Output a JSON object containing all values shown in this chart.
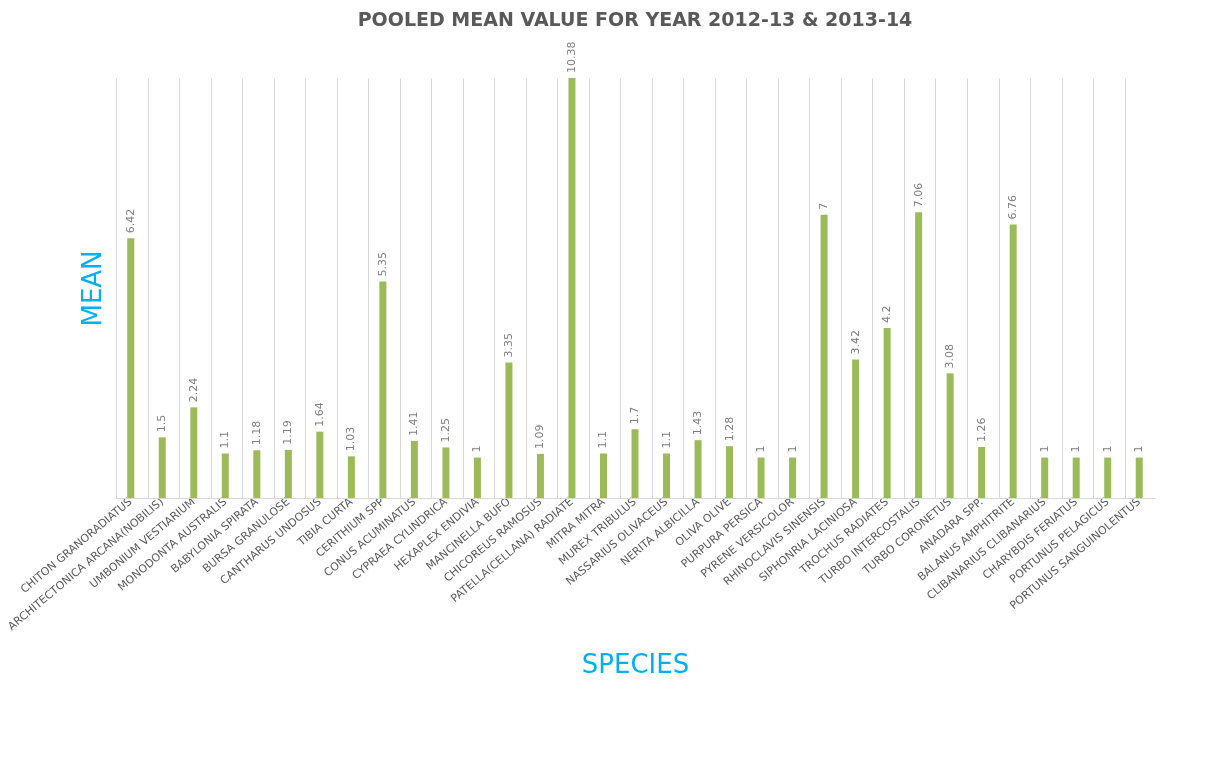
{
  "chart_data": {
    "type": "bar",
    "title": "POOLED MEAN VALUE FOR YEAR 2012-13 & 2013-14",
    "xlabel": "SPECIES",
    "ylabel": "MEAN",
    "categories": [
      "CHITON GRANORADIATUS",
      "ARCHITECTONICA ARCANA(NOBILIS)",
      "UMBONIUM VESTIARIUM",
      "MONODONTA AUSTRALIS",
      "BABYLONIA SPIRATA",
      "BURSA GRANULOSE",
      "CANTHARUS UNDOSUS",
      "TIBIA CURTA",
      "CERITHIUM SPP",
      "CONUS ACUMINATUS",
      "CYPRAEA CYLINDRICA",
      "HEXAPLEX ENDIVIA",
      "MANCINELLA BUFO",
      "CHICOREUS RAMOSUS",
      "PATELLA(CELLANA) RADIATE",
      "MITRA MITRA",
      "MUREX TRIBULUS",
      "NASSARIUS OLIVACEUS",
      "NERITA ALBICILLA",
      "OLIVA OLIVE",
      "PURPURA PERSICA",
      "PYRENE VERSICOLOR",
      "RHINOCLAVIS SINENSIS",
      "SIPHONRIA LACINIOSA",
      "TROCHUS RADIATES",
      "TURBO INTERCOSTALIS",
      "TURBO CORONETUS",
      "ANADARA SPP.",
      "BALANUS AMPHITRITE",
      "CLIBANARIUS CLIBANARIUS",
      "CHARYBDIS FERIATUS",
      "PORTUNUS PELAGICUS",
      "PORTUNUS SANGUINOLENTUS"
    ],
    "values": [
      6.42,
      1.5,
      2.24,
      1.1,
      1.18,
      1.19,
      1.64,
      1.03,
      5.35,
      1.41,
      1.25,
      1,
      3.35,
      1.09,
      10.38,
      1.1,
      1.7,
      1.1,
      1.43,
      1.28,
      1,
      1,
      7,
      3.42,
      4.2,
      7.06,
      3.08,
      1.26,
      6.76,
      1,
      1,
      1,
      1
    ],
    "color": "#9bbb59",
    "data_labels": true,
    "grid": "x"
  }
}
